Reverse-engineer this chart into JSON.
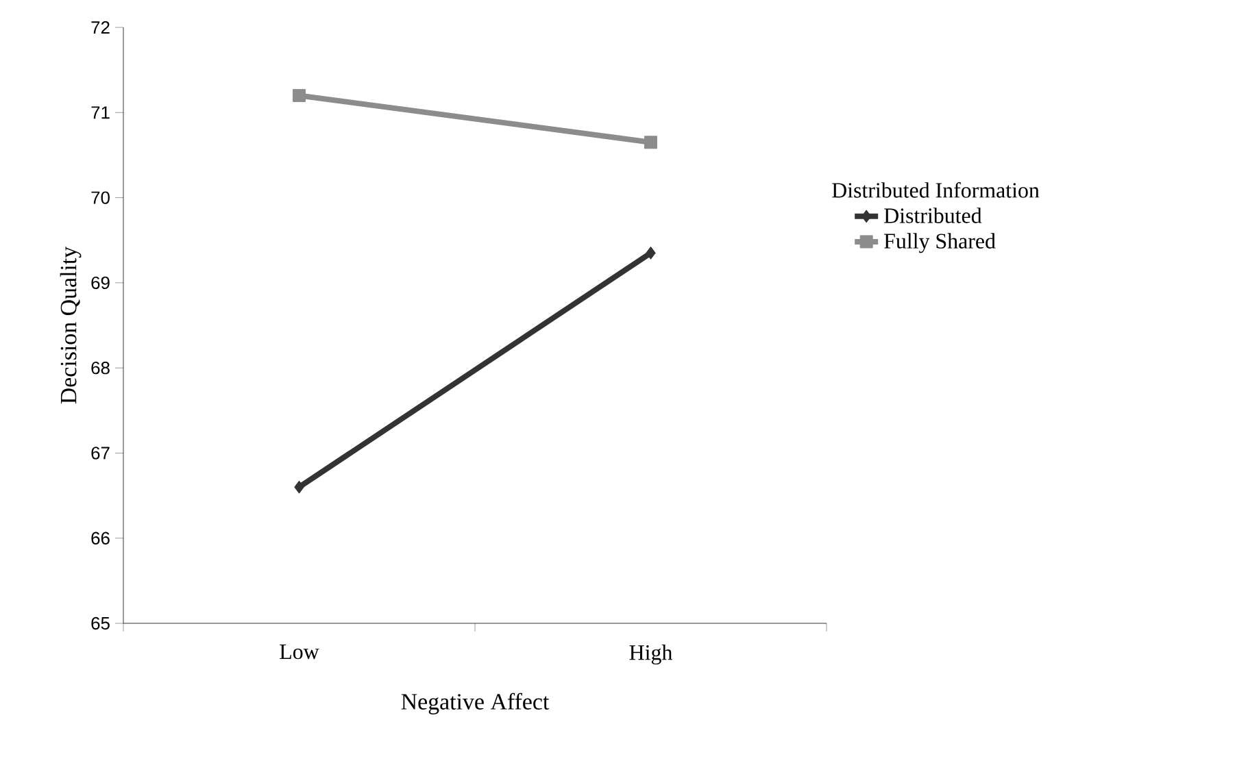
{
  "chart_data": {
    "type": "line",
    "xlabel": "Negative Affect",
    "ylabel": "Decision Quality",
    "legend_title": "Distributed Information",
    "categories": [
      "Low",
      "High"
    ],
    "series": [
      {
        "name": "Distributed",
        "color": "#333333",
        "values": [
          66.6,
          69.35
        ],
        "marker": "diamond"
      },
      {
        "name": "Fully Shared",
        "color": "#8c8c8c",
        "values": [
          71.2,
          70.65
        ],
        "marker": "square"
      }
    ],
    "ylim": [
      65,
      72
    ],
    "yticks": [
      65,
      66,
      67,
      68,
      69,
      70,
      71,
      72
    ],
    "grid": false,
    "legend": "right",
    "line_style": "solid"
  }
}
